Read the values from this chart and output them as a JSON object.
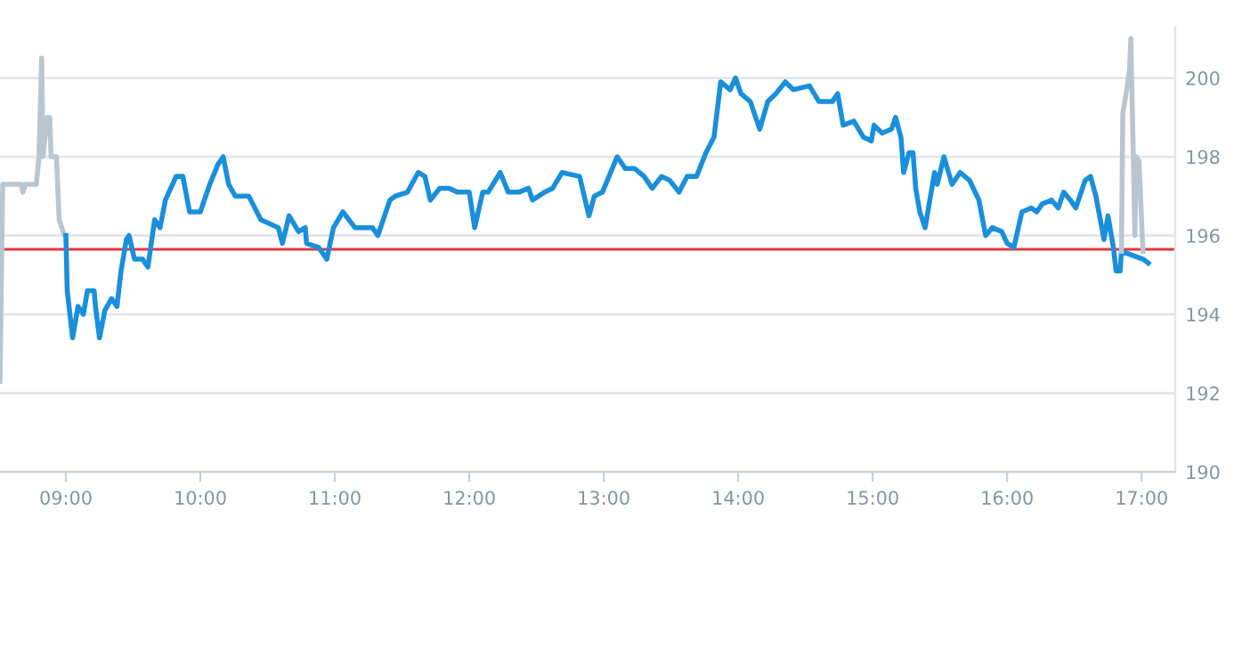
{
  "chart_data": {
    "type": "line",
    "xlim": [
      8.51,
      17.25
    ],
    "ylim": [
      190,
      201.3
    ],
    "xticks": [
      {
        "value": 9,
        "label": "09:00"
      },
      {
        "value": 10,
        "label": "10:00"
      },
      {
        "value": 11,
        "label": "11:00"
      },
      {
        "value": 12,
        "label": "12:00"
      },
      {
        "value": 13,
        "label": "13:00"
      },
      {
        "value": 14,
        "label": "14:00"
      },
      {
        "value": 15,
        "label": "15:00"
      },
      {
        "value": 16,
        "label": "16:00"
      },
      {
        "value": 17,
        "label": "17:00"
      }
    ],
    "yticks": [
      190,
      192,
      194,
      196,
      198,
      200
    ],
    "grid": "y",
    "marker": "none",
    "line_style": "solid",
    "ref_lines": [
      {
        "axis": "y",
        "value": 195.65,
        "color": "#e0393e"
      }
    ],
    "series": [
      {
        "color": "#b9c6cf",
        "x": [
          8.51,
          8.53,
          8.67,
          8.68,
          8.7,
          8.78,
          8.8,
          8.82,
          8.83,
          8.86,
          8.88,
          8.89,
          8.93,
          8.95,
          8.99,
          9.0
        ],
        "values": [
          192.3,
          197.3,
          197.3,
          197.1,
          197.3,
          197.3,
          198.0,
          200.5,
          198.0,
          199.0,
          199.0,
          198.0,
          198.0,
          196.4,
          196.0,
          196.0
        ]
      },
      {
        "color": "#1a8fdb",
        "x": [
          9.0,
          9.01,
          9.05,
          9.09,
          9.13,
          9.16,
          9.21,
          9.22,
          9.25,
          9.29,
          9.34,
          9.38,
          9.41,
          9.45,
          9.47,
          9.51,
          9.57,
          9.61,
          9.66,
          9.7,
          9.74,
          9.82,
          9.87,
          9.92,
          10.0,
          10.07,
          10.13,
          10.17,
          10.21,
          10.26,
          10.36,
          10.45,
          10.58,
          10.61,
          10.66,
          10.73,
          10.78,
          10.79,
          10.88,
          10.94,
          10.99,
          11.06,
          11.15,
          11.19,
          11.28,
          11.32,
          11.41,
          11.45,
          11.54,
          11.62,
          11.67,
          11.71,
          11.78,
          11.85,
          11.91,
          12.0,
          12.04,
          12.1,
          12.14,
          12.23,
          12.29,
          12.37,
          12.44,
          12.47,
          12.56,
          12.62,
          12.69,
          12.82,
          12.89,
          12.93,
          12.99,
          13.1,
          13.16,
          13.23,
          13.3,
          13.36,
          13.43,
          13.49,
          13.56,
          13.62,
          13.69,
          13.76,
          13.82,
          13.87,
          13.94,
          13.98,
          14.02,
          14.09,
          14.16,
          14.22,
          14.28,
          14.35,
          14.41,
          14.53,
          14.6,
          14.7,
          14.74,
          14.78,
          14.86,
          14.93,
          14.99,
          15.01,
          15.07,
          15.14,
          15.17,
          15.21,
          15.23,
          15.27,
          15.3,
          15.32,
          15.35,
          15.39,
          15.46,
          15.48,
          15.53,
          15.59,
          15.65,
          15.72,
          15.79,
          15.84,
          15.89,
          15.96,
          16.0,
          16.05,
          16.11,
          16.18,
          16.22,
          16.26,
          16.33,
          16.38,
          16.42,
          16.47,
          16.51,
          16.58,
          16.62,
          16.66,
          16.72,
          16.75,
          16.79,
          16.81,
          16.84,
          16.85,
          17.01,
          17.05
        ],
        "values": [
          196.0,
          194.6,
          193.4,
          194.2,
          194.0,
          194.6,
          194.6,
          194.2,
          193.4,
          194.1,
          194.4,
          194.2,
          195.1,
          195.9,
          196.0,
          195.4,
          195.4,
          195.2,
          196.4,
          196.2,
          196.9,
          197.5,
          197.5,
          196.6,
          196.6,
          197.3,
          197.8,
          198.0,
          197.3,
          197.0,
          197.0,
          196.4,
          196.2,
          195.8,
          196.5,
          196.1,
          196.2,
          195.8,
          195.7,
          195.4,
          196.2,
          196.6,
          196.2,
          196.2,
          196.2,
          196.0,
          196.9,
          197.0,
          197.1,
          197.6,
          197.5,
          196.9,
          197.2,
          197.2,
          197.1,
          197.1,
          196.2,
          197.1,
          197.1,
          197.6,
          197.1,
          197.1,
          197.2,
          196.9,
          197.1,
          197.2,
          197.6,
          197.5,
          196.5,
          197.0,
          197.1,
          198.0,
          197.7,
          197.7,
          197.5,
          197.2,
          197.5,
          197.4,
          197.1,
          197.5,
          197.5,
          198.1,
          198.5,
          199.9,
          199.7,
          200.0,
          199.6,
          199.4,
          198.7,
          199.4,
          199.6,
          199.9,
          199.7,
          199.8,
          199.4,
          199.4,
          199.6,
          198.8,
          198.9,
          198.5,
          198.4,
          198.8,
          198.6,
          198.7,
          199.0,
          198.5,
          197.6,
          198.1,
          198.1,
          197.2,
          196.6,
          196.2,
          197.6,
          197.3,
          198.0,
          197.3,
          197.6,
          197.4,
          196.9,
          196.0,
          196.2,
          196.1,
          195.8,
          195.7,
          196.6,
          196.7,
          196.6,
          196.8,
          196.9,
          196.7,
          197.1,
          196.9,
          196.7,
          197.4,
          197.5,
          197.0,
          195.9,
          196.5,
          195.7,
          195.1,
          195.1,
          195.6,
          195.4,
          195.3
        ]
      },
      {
        "color": "#b9c6cf",
        "x": [
          16.85,
          16.86,
          16.88,
          16.91,
          16.92,
          16.95,
          16.96,
          16.98,
          17.01
        ],
        "values": [
          195.6,
          199.1,
          199.5,
          200.2,
          201.0,
          196.0,
          198.0,
          197.9,
          195.6
        ]
      }
    ]
  }
}
